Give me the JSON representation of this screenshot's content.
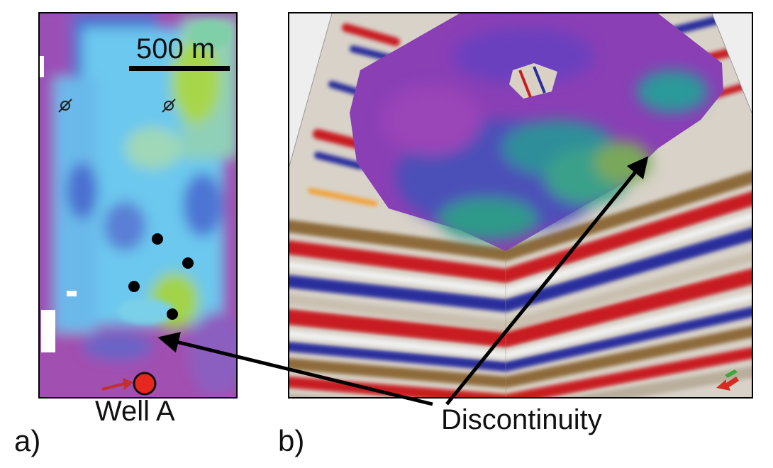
{
  "panels": {
    "a": {
      "label": "a)"
    },
    "b": {
      "label": "b)"
    }
  },
  "scale_bar": {
    "text": "500 m"
  },
  "annotations": {
    "well": "Well A",
    "discontinuity": "Discontinuity"
  },
  "colors": {
    "magenta": "#a14fb0",
    "blue": "#3f5ec8",
    "cyan": "#6cc8ee",
    "green": "#9ed04c",
    "seismic_red": "#c81c24",
    "seismic_blue": "#2a2f9c",
    "seismic_brown": "#8e6a3a",
    "well_marker": "#e8281e",
    "arrow": "#000000"
  },
  "icons": [
    "well-symbol-icon",
    "well-symbol-icon",
    "orientation-arrow-icon"
  ]
}
